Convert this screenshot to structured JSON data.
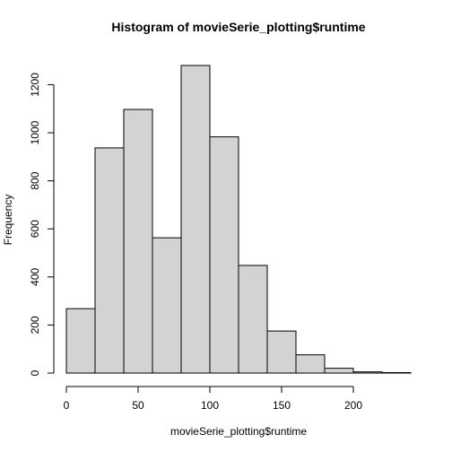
{
  "chart_data": {
    "type": "bar",
    "title": "Histogram of movieSerie_plotting$runtime",
    "xlabel": "movieSerie_plotting$runtime",
    "ylabel": "Frequency",
    "bins": [
      {
        "start": 0,
        "end": 20,
        "count": 268
      },
      {
        "start": 20,
        "end": 40,
        "count": 937
      },
      {
        "start": 40,
        "end": 60,
        "count": 1097
      },
      {
        "start": 60,
        "end": 80,
        "count": 563
      },
      {
        "start": 80,
        "end": 100,
        "count": 1280
      },
      {
        "start": 100,
        "end": 120,
        "count": 983
      },
      {
        "start": 120,
        "end": 140,
        "count": 448
      },
      {
        "start": 140,
        "end": 160,
        "count": 175
      },
      {
        "start": 160,
        "end": 180,
        "count": 76
      },
      {
        "start": 180,
        "end": 200,
        "count": 20
      },
      {
        "start": 200,
        "end": 220,
        "count": 5
      },
      {
        "start": 220,
        "end": 240,
        "count": 2
      }
    ],
    "xlim": [
      0,
      240
    ],
    "ylim": [
      0,
      1280
    ],
    "x_ticks": [
      0,
      50,
      100,
      150,
      200
    ],
    "y_ticks": [
      0,
      200,
      400,
      600,
      800,
      1000,
      1200
    ],
    "bar_fill": "#d3d3d3",
    "bar_stroke": "#000000",
    "grid": false,
    "legend": "none"
  }
}
